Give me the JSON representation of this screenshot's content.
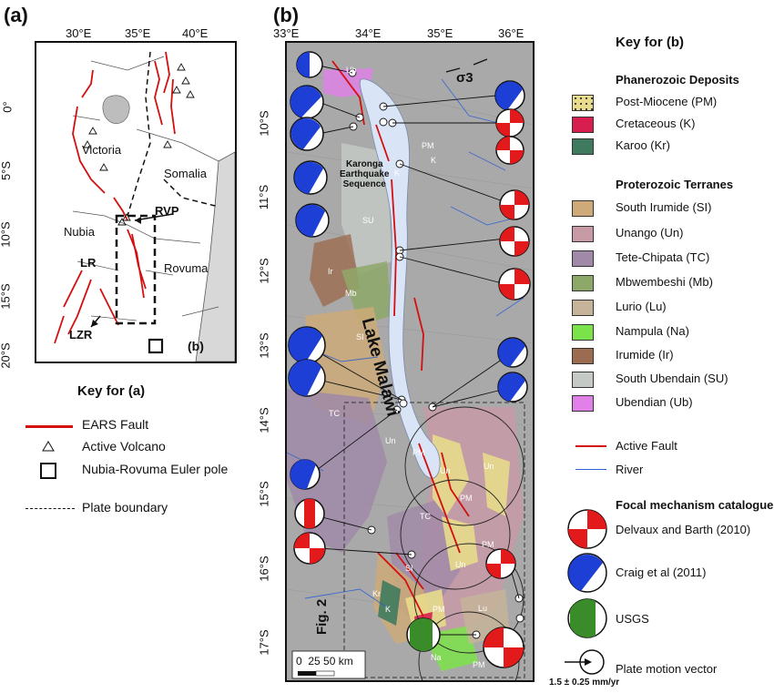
{
  "panel_a": {
    "label": "(a)",
    "x_ticks": [
      "30°E",
      "35°E",
      "40°E"
    ],
    "y_ticks": [
      "0°",
      "5°S",
      "10°S",
      "15°S",
      "20°S"
    ],
    "labels": {
      "victoria": "Victoria",
      "somalia": "Somalia",
      "nubia": "Nubia",
      "rvp": "RVP",
      "lr": "LR",
      "rovuma": "Rovuma",
      "lzr": "LZR",
      "b_box": "(b)"
    }
  },
  "panel_b": {
    "label": "(b)",
    "x_ticks": [
      "33°E",
      "34°E",
      "35°E",
      "36°E"
    ],
    "y_ticks": [
      "10°S",
      "11°S",
      "12°S",
      "13°S",
      "14°S",
      "15°S",
      "16°S",
      "17°S"
    ],
    "labels": {
      "lake": "Lake Malawi",
      "karonga": "Karonga\nEarthquake\nSequence",
      "sigma": "σ3",
      "fig2": "Fig. 2",
      "scale": "0  25 50 km",
      "ub": "Ub",
      "su": "SU",
      "ir": "Ir",
      "mb": "Mb",
      "si": "SI",
      "tc": "TC",
      "tc2": "TC",
      "un": "Un",
      "un2": "Un",
      "un3": "Un",
      "un4": "Un",
      "pm": "PM",
      "pm2": "PM",
      "pm3": "PM",
      "pm4": "PM",
      "pm5": "PM",
      "k": "K",
      "k2": "K",
      "kr": "Kr",
      "si2": "SI",
      "lu": "Lu",
      "na": "Na",
      "pm_top": "PM",
      "k_top": "K"
    }
  },
  "key_a": {
    "title": "Key for (a)",
    "items": {
      "fault": "EARS Fault",
      "volcano": "Active Volcano",
      "euler": "Nubia-Rovuma Euler pole",
      "boundary": "Plate boundary"
    }
  },
  "key_b": {
    "title": "Key for (b)",
    "phanerozoic_title": "Phanerozoic Deposits",
    "phanerozoic": [
      {
        "label": "Post-Miocene (PM)",
        "color": "#e8dc8c"
      },
      {
        "label": "Cretaceous (K)",
        "color": "#d81e4f"
      },
      {
        "label": "Karoo (Kr)",
        "color": "#3f7a5e"
      }
    ],
    "proterozoic_title": "Proterozoic Terranes",
    "proterozoic": [
      {
        "label": "South Irumide (SI)",
        "color": "#cdaa78"
      },
      {
        "label": "Unango (Un)",
        "color": "#c79aa6"
      },
      {
        "label": "Tete-Chipata (TC)",
        "color": "#a08aa8"
      },
      {
        "label": "Mbwembeshi (Mb)",
        "color": "#8ea86a"
      },
      {
        "label": "Lurio (Lu)",
        "color": "#c6b49a"
      },
      {
        "label": "Nampula (Na)",
        "color": "#7ce24a"
      },
      {
        "label": "Irumide (Ir)",
        "color": "#9c6c50"
      },
      {
        "label": "South Ubendain (SU)",
        "color": "#c4c9c6"
      },
      {
        "label": "Ubendian (Ub)",
        "color": "#e080e8"
      }
    ],
    "active_fault": "Active Fault",
    "river": "River",
    "focal_title": "Focal mechanism catalogue",
    "focal": [
      {
        "label": "Delvaux and Barth (2010)",
        "color": "#e31a1c"
      },
      {
        "label": "Craig et al (2011)",
        "color": "#1d3fd6"
      },
      {
        "label": "USGS",
        "color": "#3a8c2a"
      }
    ],
    "plate_motion": "Plate motion vector",
    "plate_motion_value": "1.5 ± 0.25 mm/yr"
  }
}
